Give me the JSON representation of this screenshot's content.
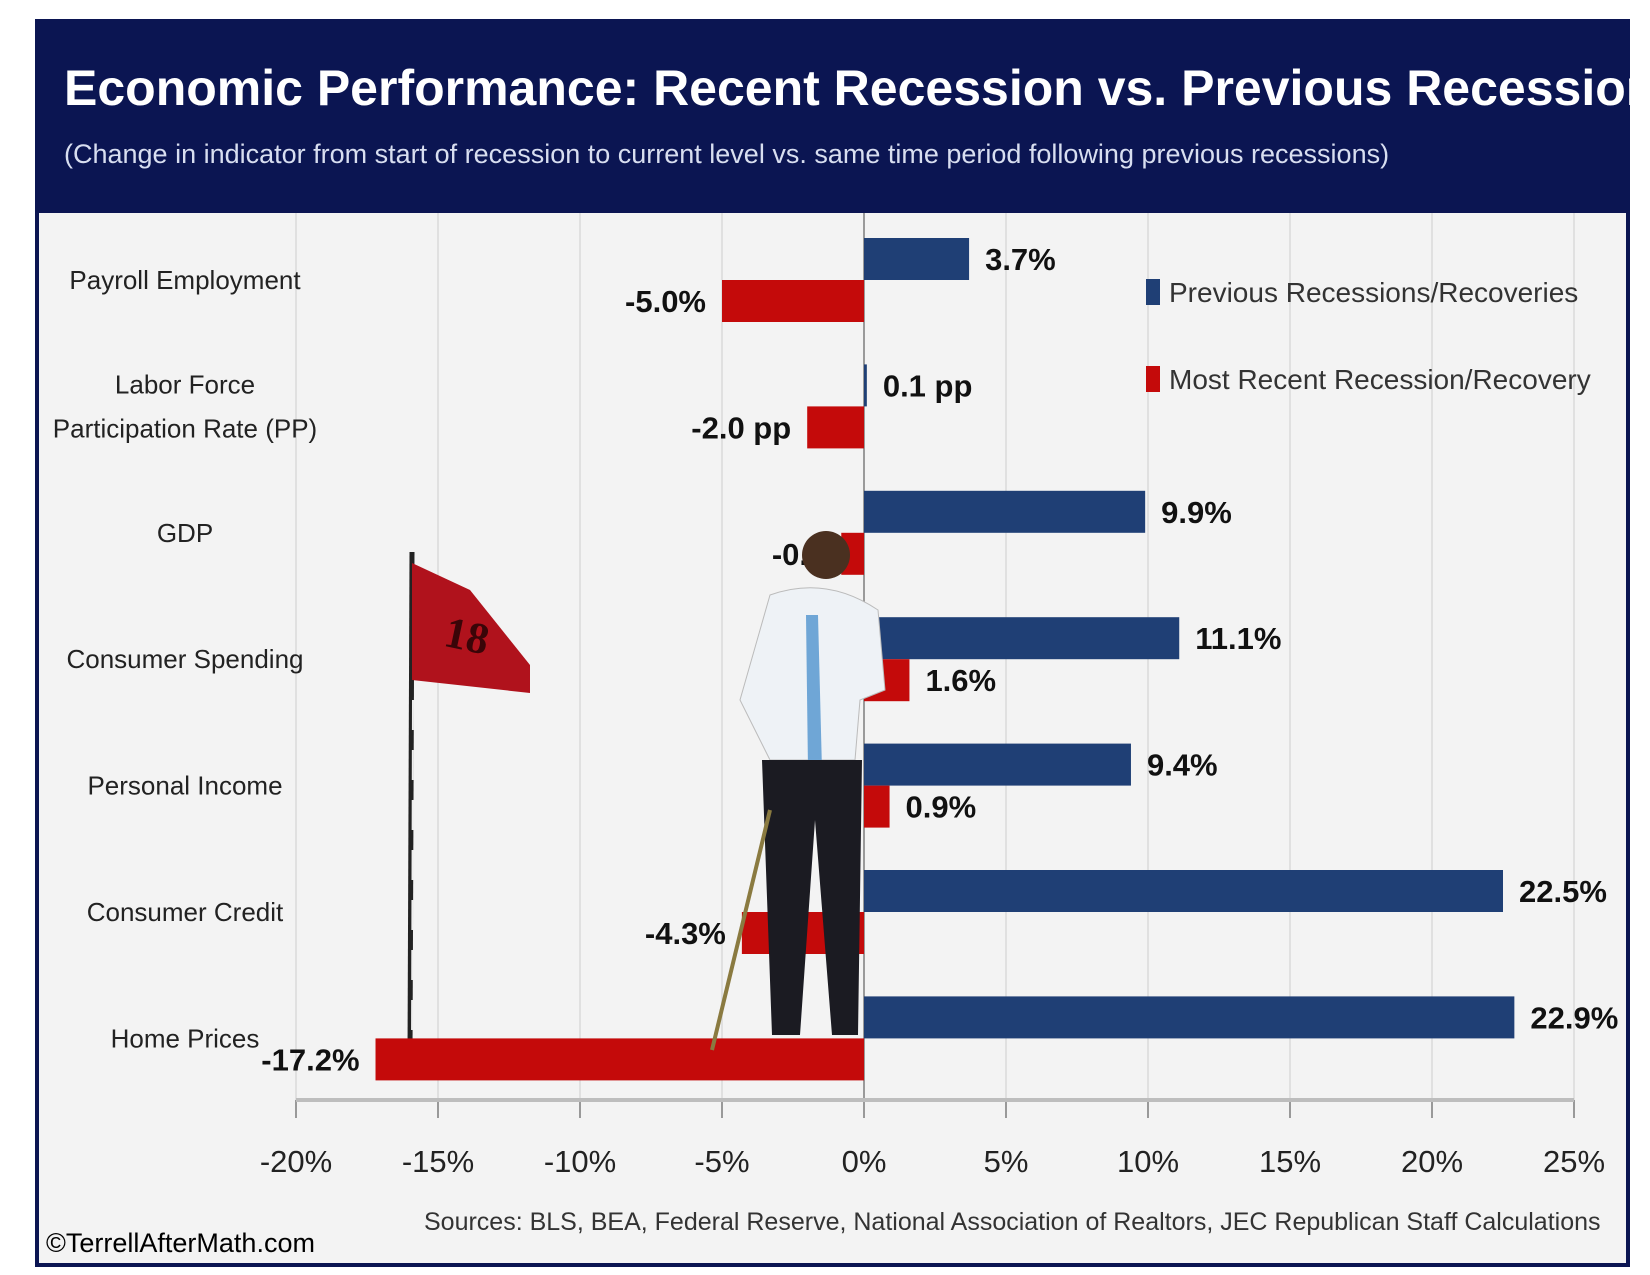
{
  "chart_data": {
    "type": "bar",
    "orientation": "horizontal",
    "title": "Economic Performance: Recent Recession vs. Previous Recessions",
    "subtitle": "(Change in indicator from start of recession to current level vs. same time period following previous recessions)",
    "categories": [
      [
        "Payroll Employment"
      ],
      [
        "Labor Force",
        "Participation Rate (PP)"
      ],
      [
        "GDP"
      ],
      [
        "Consumer Spending"
      ],
      [
        "Personal Income"
      ],
      [
        "Consumer Credit"
      ],
      [
        "Home Prices"
      ]
    ],
    "series": [
      {
        "name": "Previous Recessions/Recoveries",
        "color": "#1f3f75",
        "values": [
          3.7,
          0.1,
          9.9,
          11.1,
          9.4,
          22.5,
          22.9
        ],
        "labels": [
          "3.7%",
          "0.1 pp",
          "9.9%",
          "11.1%",
          "9.4%",
          "22.5%",
          "22.9%"
        ]
      },
      {
        "name": "Most Recent Recession/Recovery",
        "color": "#c40a0a",
        "values": [
          -5.0,
          -2.0,
          -0.8,
          1.6,
          0.9,
          -4.3,
          -17.2
        ],
        "labels": [
          "-5.0%",
          "-2.0 pp",
          "-0.8",
          "1.6%",
          "0.9%",
          "-4.3%",
          "-17.2%"
        ]
      }
    ],
    "xlim": [
      -20,
      25
    ],
    "xticks": [
      "-20%",
      "-15%",
      "-10%",
      "-5%",
      "0%",
      "5%",
      "10%",
      "15%",
      "20%",
      "25%"
    ],
    "xtick_values": [
      -20,
      -15,
      -10,
      -5,
      0,
      5,
      10,
      15,
      20,
      25
    ],
    "grid": "vertical",
    "legend": "top-right",
    "source": "Sources: BLS, BEA, Federal Reserve, National Association of Realtors, JEC Republican Staff Calculations",
    "credit": "©TerrellAfterMath.com",
    "flag_number": "18",
    "colors": {
      "header": "#0b1552",
      "plot_bg": "#f3f3f3",
      "grid": "#d9d9d9"
    }
  }
}
